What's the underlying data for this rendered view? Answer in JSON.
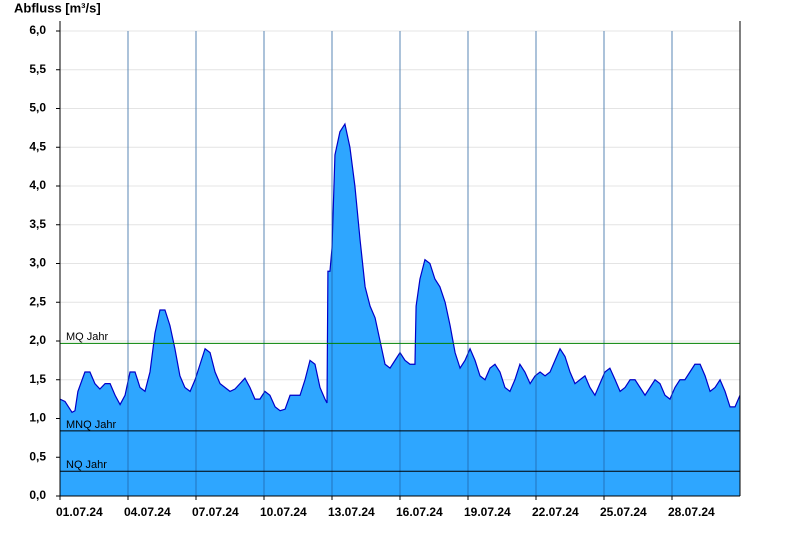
{
  "chart_data": {
    "type": "area",
    "title": "Abfluss [m³/s]",
    "color": "#2ea6ff",
    "line_color": "#0000c8",
    "grid": true,
    "xlim": [
      0,
      30
    ],
    "xticks": [
      {
        "value": 0,
        "label": "01.07.24"
      },
      {
        "value": 3,
        "label": "04.07.24"
      },
      {
        "value": 6,
        "label": "07.07.24"
      },
      {
        "value": 9,
        "label": "10.07.24"
      },
      {
        "value": 12,
        "label": "13.07.24"
      },
      {
        "value": 15,
        "label": "16.07.24"
      },
      {
        "value": 18,
        "label": "19.07.24"
      },
      {
        "value": 21,
        "label": "22.07.24"
      },
      {
        "value": 24,
        "label": "25.07.24"
      },
      {
        "value": 27,
        "label": "28.07.24"
      }
    ],
    "ylim": [
      0,
      6
    ],
    "yticks": [
      {
        "value": 0,
        "label": "0,0"
      },
      {
        "value": 0.5,
        "label": "0,5"
      },
      {
        "value": 1,
        "label": "1,0"
      },
      {
        "value": 1.5,
        "label": "1,5"
      },
      {
        "value": 2,
        "label": "2,0"
      },
      {
        "value": 2.5,
        "label": "2,5"
      },
      {
        "value": 3,
        "label": "3,0"
      },
      {
        "value": 3.5,
        "label": "3,5"
      },
      {
        "value": 4,
        "label": "4,0"
      },
      {
        "value": 4.5,
        "label": "4,5"
      },
      {
        "value": 5,
        "label": "5,0"
      },
      {
        "value": 5.5,
        "label": "5,5"
      },
      {
        "value": 6,
        "label": "6,0"
      }
    ],
    "reference_lines": [
      {
        "label": "MQ Jahr",
        "value": 1.97,
        "color": "#008000"
      },
      {
        "label": "MNQ Jahr",
        "value": 0.84,
        "color": "#000000"
      },
      {
        "label": "NQ Jahr",
        "value": 0.32,
        "color": "#000000"
      }
    ],
    "x": [
      0,
      0.22,
      0.53,
      0.66,
      0.79,
      1.1,
      1.32,
      1.54,
      1.76,
      1.99,
      2.21,
      2.43,
      2.65,
      2.87,
      3.09,
      3.31,
      3.53,
      3.75,
      3.97,
      4.19,
      4.41,
      4.63,
      4.85,
      5.07,
      5.29,
      5.51,
      5.74,
      5.96,
      6.18,
      6.4,
      6.62,
      6.84,
      7.06,
      7.28,
      7.5,
      7.72,
      7.94,
      8.16,
      8.38,
      8.6,
      8.82,
      9.04,
      9.26,
      9.49,
      9.71,
      9.93,
      10.15,
      10.37,
      10.59,
      10.81,
      11.03,
      11.25,
      11.47,
      11.69,
      11.78,
      11.82,
      11.91,
      12.0,
      12.13,
      12.35,
      12.57,
      12.79,
      13.01,
      13.24,
      13.46,
      13.68,
      13.9,
      14.12,
      14.34,
      14.56,
      14.78,
      15.0,
      15.22,
      15.44,
      15.66,
      15.71,
      15.88,
      16.1,
      16.32,
      16.54,
      16.76,
      16.99,
      17.21,
      17.43,
      17.65,
      17.87,
      18.09,
      18.31,
      18.53,
      18.75,
      18.97,
      19.19,
      19.41,
      19.63,
      19.85,
      20.07,
      20.29,
      20.51,
      20.74,
      20.96,
      21.18,
      21.4,
      21.62,
      21.84,
      22.06,
      22.28,
      22.5,
      22.72,
      22.94,
      23.16,
      23.38,
      23.6,
      23.82,
      24.04,
      24.26,
      24.49,
      24.71,
      24.93,
      25.15,
      25.37,
      25.59,
      25.81,
      26.03,
      26.25,
      26.47,
      26.69,
      26.91,
      27.13,
      27.35,
      27.57,
      27.79,
      28.01,
      28.24,
      28.46,
      28.68,
      28.9,
      29.12,
      29.34,
      29.56,
      29.78,
      30.0
    ],
    "values": [
      1.25,
      1.22,
      1.08,
      1.1,
      1.35,
      1.6,
      1.6,
      1.45,
      1.38,
      1.45,
      1.45,
      1.3,
      1.18,
      1.3,
      1.6,
      1.6,
      1.4,
      1.35,
      1.6,
      2.1,
      2.4,
      2.4,
      2.2,
      1.9,
      1.55,
      1.4,
      1.35,
      1.5,
      1.7,
      1.9,
      1.85,
      1.6,
      1.45,
      1.4,
      1.35,
      1.38,
      1.45,
      1.52,
      1.4,
      1.25,
      1.25,
      1.35,
      1.3,
      1.15,
      1.1,
      1.12,
      1.3,
      1.3,
      1.3,
      1.5,
      1.75,
      1.7,
      1.4,
      1.25,
      1.2,
      2.9,
      2.9,
      3.2,
      4.4,
      4.7,
      4.8,
      4.5,
      4.0,
      3.3,
      2.7,
      2.45,
      2.3,
      2.0,
      1.7,
      1.65,
      1.75,
      1.85,
      1.75,
      1.7,
      1.7,
      2.45,
      2.8,
      3.05,
      3.0,
      2.8,
      2.7,
      2.5,
      2.2,
      1.85,
      1.65,
      1.75,
      1.9,
      1.75,
      1.55,
      1.5,
      1.65,
      1.7,
      1.6,
      1.4,
      1.35,
      1.5,
      1.7,
      1.6,
      1.45,
      1.55,
      1.6,
      1.55,
      1.6,
      1.75,
      1.9,
      1.8,
      1.6,
      1.45,
      1.5,
      1.55,
      1.4,
      1.3,
      1.45,
      1.6,
      1.65,
      1.5,
      1.35,
      1.4,
      1.5,
      1.5,
      1.4,
      1.3,
      1.4,
      1.5,
      1.45,
      1.3,
      1.25,
      1.4,
      1.5,
      1.5,
      1.6,
      1.7,
      1.7,
      1.55,
      1.35,
      1.4,
      1.5,
      1.35,
      1.15,
      1.15,
      1.3
    ]
  }
}
